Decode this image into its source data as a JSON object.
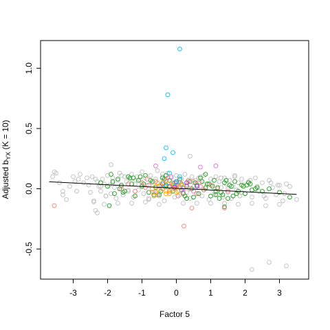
{
  "chart_data": {
    "type": "scatter",
    "title": "",
    "xlabel": "Factor 5",
    "ylabel_main": "Adjusted b",
    "ylabel_sub": "YX",
    "ylabel_tail": " (K = 10)",
    "xlim": [
      -3.95,
      3.85
    ],
    "ylim": [
      -0.75,
      1.23
    ],
    "xticks": [
      -3,
      -2,
      -1,
      0,
      1,
      2,
      3
    ],
    "xtick_labels": [
      "-3",
      "-2",
      "-1",
      "0",
      "1",
      "2",
      "3"
    ],
    "yticks": [
      -0.5,
      0.0,
      0.5,
      1.0
    ],
    "ytick_labels": [
      "-0.5",
      "0.0",
      "0.5",
      "1.0"
    ],
    "grid": false,
    "legend": "none",
    "trendline": {
      "x": [
        -3.7,
        3.5
      ],
      "y": [
        0.058,
        -0.047
      ]
    },
    "colors": {
      "grey": "#BEBEBE",
      "green": "#1A9C1A",
      "pink": "#F08080",
      "orange": "#FFA500",
      "cyan": "#00BFFF",
      "magenta": "#DA70D6",
      "blue": "#4169E1",
      "purple": "#A020F0"
    },
    "series": [
      {
        "color_key": "grey",
        "x": [
          -3.6,
          -3.5,
          -3.4,
          -3.3,
          -3.2,
          -3.1,
          -3.0,
          -2.9,
          -2.85,
          -2.8,
          -2.7,
          -2.6,
          -2.5,
          -2.45,
          -2.4,
          -2.3,
          -2.25,
          -2.2,
          -2.15,
          -2.1,
          -2.05,
          -2.0,
          -1.95,
          -1.9,
          -1.85,
          -1.8,
          -1.75,
          -1.7,
          -1.65,
          -1.6,
          -1.55,
          -1.5,
          -1.45,
          -1.4,
          -1.35,
          -1.3,
          -1.25,
          -1.2,
          -1.15,
          -1.1,
          -1.05,
          -1.0,
          -0.95,
          -0.9,
          -0.85,
          -0.8,
          -0.75,
          -0.7,
          -0.65,
          -0.6,
          -0.55,
          -0.5,
          -0.45,
          -0.4,
          -0.35,
          -0.3,
          -0.25,
          -0.2,
          -0.15,
          -0.1,
          -0.05,
          0.0,
          0.05,
          0.1,
          0.15,
          0.2,
          0.25,
          0.3,
          0.35,
          0.4,
          0.45,
          0.5,
          0.55,
          0.6,
          0.65,
          0.7,
          0.75,
          0.8,
          0.85,
          0.9,
          0.95,
          1.0,
          1.05,
          1.1,
          1.15,
          1.2,
          1.25,
          1.3,
          1.35,
          1.4,
          1.45,
          1.5,
          1.55,
          1.6,
          1.65,
          1.7,
          1.75,
          1.8,
          1.85,
          1.9,
          1.95,
          2.0,
          2.1,
          2.2,
          2.3,
          2.4,
          2.5,
          2.6,
          2.7,
          2.8,
          2.9,
          3.0,
          3.1,
          3.2,
          3.3,
          3.5,
          -3.55,
          -3.3,
          -2.95,
          -2.55,
          -2.35,
          -2.2,
          -2.05,
          -1.85,
          -1.6,
          -1.4,
          -1.2,
          -1.0,
          -0.8,
          -0.6,
          -0.4,
          -0.2,
          0.1,
          0.3,
          0.5,
          0.7,
          0.9,
          1.1,
          1.3,
          1.5,
          1.7,
          1.9,
          2.15,
          2.35,
          2.55,
          2.75,
          2.95,
          3.15,
          -2.4,
          -2.1,
          -1.7,
          -1.3,
          -0.9,
          -0.5,
          0.2,
          0.6,
          1.0,
          1.4,
          1.8,
          2.2,
          2.6,
          3.0,
          2.7,
          3.2,
          2.2,
          -2.35,
          -2.3,
          -1.9,
          0.4
        ],
        "y": [
          0.1,
          0.13,
          0.05,
          -0.05,
          -0.09,
          0.02,
          0.1,
          -0.02,
          0.08,
          0.12,
          0.05,
          0.09,
          -0.03,
          0.1,
          -0.1,
          0.06,
          0.02,
          -0.02,
          0.08,
          0.04,
          -0.06,
          0.11,
          0.03,
          -0.04,
          0.09,
          0.01,
          -0.08,
          0.07,
          0.13,
          0.02,
          -0.05,
          0.1,
          0.06,
          -0.02,
          0.08,
          0.12,
          -0.07,
          0.04,
          0.1,
          -0.01,
          0.07,
          0.14,
          -0.04,
          0.09,
          0.03,
          -0.09,
          0.11,
          0.05,
          -0.03,
          0.08,
          0.15,
          -0.06,
          0.02,
          0.1,
          -0.1,
          0.06,
          0.13,
          -0.02,
          0.09,
          0.04,
          -0.07,
          0.11,
          0.03,
          -0.05,
          0.08,
          0.01,
          0.12,
          -0.03,
          0.06,
          -0.08,
          0.1,
          0.02,
          0.07,
          -0.04,
          0.09,
          0.05,
          -0.06,
          0.11,
          0.0,
          0.04,
          -0.09,
          0.08,
          0.03,
          -0.02,
          0.1,
          -0.05,
          0.06,
          0.01,
          -0.07,
          0.09,
          0.04,
          -0.03,
          0.07,
          -0.08,
          0.02,
          0.1,
          -0.01,
          0.05,
          -0.06,
          0.08,
          0.03,
          -0.04,
          0.06,
          -0.07,
          0.09,
          -0.02,
          0.05,
          -0.08,
          0.07,
          0.01,
          -0.05,
          0.03,
          -0.1,
          0.04,
          0.02,
          -0.09,
          0.14,
          -0.02,
          0.06,
          0.03,
          0.08,
          0.02,
          -0.06,
          0.05,
          0.11,
          -0.01,
          0.07,
          0.03,
          -0.08,
          0.06,
          0.12,
          -0.04,
          0.08,
          0.02,
          -0.07,
          0.1,
          0.04,
          -0.05,
          0.09,
          0.0,
          0.11,
          -0.03,
          0.07,
          0.02,
          -0.06,
          0.05,
          0.03,
          -0.04,
          -0.11,
          -0.13,
          -0.12,
          -0.12,
          -0.11,
          -0.13,
          -0.12,
          -0.12,
          -0.12,
          -0.12,
          -0.13,
          -0.12,
          -0.14,
          -0.13,
          -0.61,
          -0.64,
          -0.67,
          -0.18,
          -0.2,
          0.2,
          0.27
        ],
        "size": 2.9
      },
      {
        "color_key": "green",
        "x": [
          -2.2,
          -2.0,
          -1.9,
          -1.8,
          -1.7,
          -1.6,
          -1.5,
          -1.4,
          -1.3,
          -1.2,
          -1.1,
          -1.0,
          -0.9,
          -0.8,
          -0.7,
          -0.6,
          -0.5,
          -0.4,
          -0.3,
          -0.2,
          -0.1,
          0.0,
          0.1,
          0.2,
          0.3,
          0.4,
          0.5,
          0.6,
          0.7,
          0.8,
          0.9,
          1.0,
          1.1,
          1.2,
          1.3,
          1.4,
          1.5,
          1.6,
          1.7,
          1.8,
          1.9,
          2.0,
          2.1,
          2.2,
          2.3,
          2.5,
          2.7,
          3.0,
          3.3,
          -1.85,
          -1.55,
          -1.25,
          -0.95,
          -0.65,
          -0.35,
          -0.05,
          0.25,
          0.55,
          0.85,
          1.15,
          1.45,
          1.75,
          2.05,
          2.35,
          -1.65,
          -1.05,
          -0.45,
          0.15,
          0.75,
          1.35,
          1.95,
          0.45,
          0.95,
          1.25,
          1.55,
          -1.35,
          -0.75,
          0.65,
          1.05,
          1.65,
          2.15,
          -1.95,
          1.4,
          0.3,
          -0.3,
          0.85,
          1.15
        ],
        "y": [
          0.05,
          0.02,
          0.12,
          -0.04,
          0.08,
          0.03,
          -0.02,
          0.1,
          0.04,
          -0.06,
          0.07,
          0.02,
          0.11,
          -0.03,
          0.06,
          0.01,
          -0.05,
          0.09,
          0.03,
          0.07,
          -0.02,
          0.05,
          0.08,
          -0.04,
          0.02,
          0.06,
          -0.07,
          0.03,
          0.09,
          -0.01,
          0.04,
          -0.06,
          0.07,
          0.01,
          -0.03,
          0.05,
          -0.08,
          0.02,
          0.06,
          -0.02,
          0.03,
          -0.04,
          0.05,
          -0.01,
          0.0,
          -0.02,
          0.0,
          -0.03,
          -0.07,
          0.06,
          -0.03,
          0.09,
          0.04,
          -0.05,
          0.08,
          0.02,
          -0.06,
          0.05,
          0.01,
          -0.02,
          0.07,
          -0.04,
          0.03,
          0.01,
          0.0,
          0.1,
          -0.02,
          0.04,
          0.06,
          -0.05,
          0.02,
          0.0,
          0.04,
          -0.08,
          0.03,
          0.09,
          0.07,
          -0.04,
          0.02,
          -0.06,
          0.04,
          -0.14,
          -0.15,
          -0.08,
          0.11,
          0.12,
          -0.05
        ],
        "size": 2.9
      },
      {
        "color_key": "pink",
        "x": [
          -1.6,
          -1.4,
          -1.2,
          -1.0,
          -0.9,
          -0.8,
          -0.7,
          -0.6,
          -0.5,
          -0.4,
          -0.3,
          -0.2,
          -0.1,
          0.0,
          0.1,
          0.2,
          0.3,
          0.4,
          0.5,
          0.6,
          0.7,
          0.8,
          1.0,
          1.2,
          1.5,
          -0.85,
          -0.55,
          -0.25,
          0.05,
          0.35,
          0.65,
          -3.55,
          0.22,
          0.45,
          1.4
        ],
        "y": [
          0.0,
          0.04,
          -0.02,
          0.05,
          0.01,
          0.03,
          -0.03,
          0.06,
          0.02,
          0.0,
          0.07,
          -0.02,
          0.04,
          0.01,
          0.05,
          -0.03,
          0.03,
          0.0,
          0.06,
          -0.04,
          0.02,
          -0.01,
          0.03,
          0.0,
          -0.02,
          0.08,
          -0.05,
          0.09,
          -0.06,
          0.07,
          0.05,
          -0.14,
          -0.31,
          -0.16,
          -0.16
        ],
        "size": 2.9
      },
      {
        "color_key": "orange",
        "x": [
          -0.7,
          -0.6,
          -0.5,
          -0.45,
          -0.4,
          -0.35,
          -0.3,
          -0.25,
          -0.2,
          -0.15,
          -0.1,
          -0.05,
          0.0,
          0.05,
          0.1,
          0.15,
          -0.55,
          -0.3,
          -0.1,
          -0.6,
          -0.4,
          -0.2,
          0.0,
          -0.65
        ],
        "y": [
          0.0,
          0.02,
          -0.01,
          0.03,
          0.0,
          0.02,
          -0.02,
          0.04,
          0.01,
          -0.01,
          0.03,
          0.0,
          0.02,
          -0.02,
          0.01,
          0.03,
          0.05,
          -0.04,
          0.05,
          -0.03,
          0.05,
          -0.04,
          -0.03,
          -0.06
        ],
        "size": 2.9
      },
      {
        "color_key": "cyan",
        "x": [
          0.1,
          -0.25,
          -0.3,
          -0.1,
          -0.35,
          -0.2,
          -0.05,
          0.1,
          -0.3
        ],
        "y": [
          1.16,
          0.78,
          0.34,
          0.3,
          0.25,
          0.13,
          0.05,
          0.1,
          0.02
        ],
        "size": 2.9
      },
      {
        "color_key": "magenta",
        "x": [
          -0.6,
          0.7,
          1.15,
          0.0,
          0.2,
          -0.15,
          0.5
        ],
        "y": [
          0.19,
          0.18,
          0.19,
          0.03,
          0.0,
          0.1,
          -0.02
        ],
        "size": 2.9
      },
      {
        "color_key": "blue",
        "x": [
          -0.2,
          0.0,
          0.15,
          -0.4
        ],
        "y": [
          0.02,
          0.06,
          -0.01,
          0.04
        ],
        "size": 2.9
      },
      {
        "color_key": "purple",
        "x": [
          0.3,
          -0.05,
          0.6
        ],
        "y": [
          0.05,
          0.01,
          0.02
        ],
        "size": 2.9
      }
    ]
  }
}
